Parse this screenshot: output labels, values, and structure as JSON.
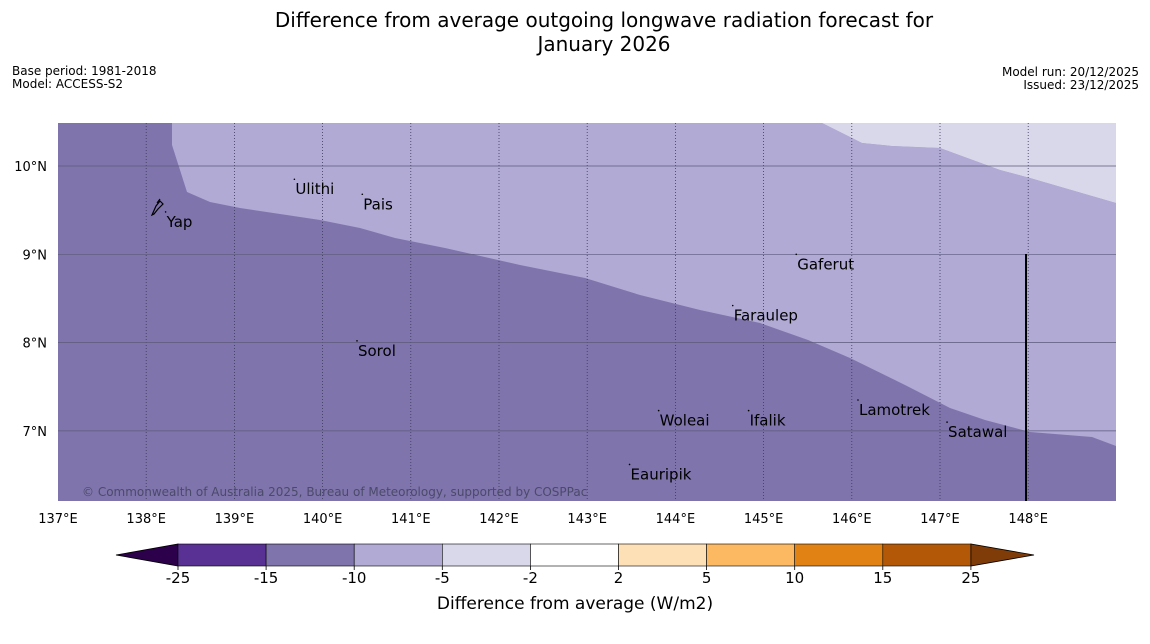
{
  "header": {
    "title_line1": "Difference from average outgoing longwave radiation forecast for",
    "title_line2": "January 2026",
    "base_period": "Base period: 1981-2018",
    "model": "Model: ACCESS-S2",
    "model_run": "Model run: 20/12/2025",
    "issued": "Issued: 23/12/2025"
  },
  "map": {
    "lon_labels": [
      "137°E",
      "138°E",
      "139°E",
      "140°E",
      "141°E",
      "142°E",
      "143°E",
      "144°E",
      "145°E",
      "146°E",
      "147°E",
      "148°E"
    ],
    "lat_labels": [
      "10°N",
      "9°N",
      "8°N",
      "7°N"
    ],
    "copyright": "© Commonwealth of Australia 2025, Bureau of Meteorology, supported by COSPPac",
    "places": [
      {
        "name": "Ulithi",
        "lon": 139.68,
        "lat": 9.85
      },
      {
        "name": "Pais",
        "lon": 140.45,
        "lat": 9.68
      },
      {
        "name": "Yap",
        "lon": 138.22,
        "lat": 9.48
      },
      {
        "name": "Gaferut",
        "lon": 145.37,
        "lat": 9.0
      },
      {
        "name": "Faraulep",
        "lon": 144.65,
        "lat": 8.42
      },
      {
        "name": "Sorol",
        "lon": 140.39,
        "lat": 8.02
      },
      {
        "name": "Lamotrek",
        "lon": 146.07,
        "lat": 7.35
      },
      {
        "name": "Woleai",
        "lon": 143.81,
        "lat": 7.23
      },
      {
        "name": "Ifalik",
        "lon": 144.83,
        "lat": 7.23
      },
      {
        "name": "Satawal",
        "lon": 147.08,
        "lat": 7.1
      },
      {
        "name": "Eauripik",
        "lon": 143.48,
        "lat": 6.62
      }
    ],
    "anomaly_zones": {
      "band_-15_-10": "#8074ac",
      "band_-10_-5": "#b0aad4",
      "band_-5_-2": "#d9d8ea"
    }
  },
  "colorbar": {
    "tick_labels": [
      "-25",
      "-15",
      "-10",
      "-5",
      "-2",
      "2",
      "5",
      "10",
      "15",
      "25"
    ],
    "colors": [
      "#593194",
      "#8074ac",
      "#b0aad4",
      "#d9d8ea",
      "#ffffff",
      "#fee0b6",
      "#fdb862",
      "#e08214",
      "#b35806"
    ],
    "extend_low_color": "#2d004b",
    "extend_high_color": "#7f3b08",
    "label": "Difference from average (W/m2)"
  }
}
